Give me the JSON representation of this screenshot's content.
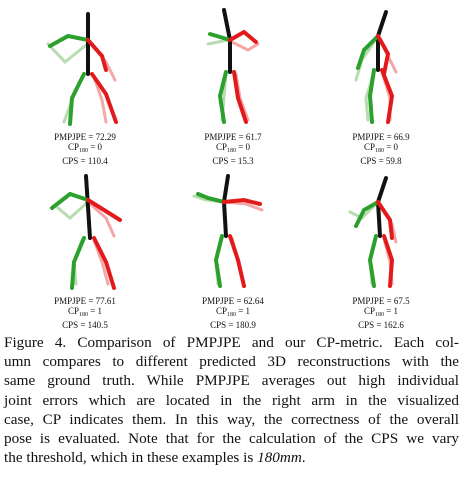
{
  "colors": {
    "ground_truth_left": "#2ca02c",
    "ground_truth_right": "#e31a1c",
    "prediction_left": "#b8dcb0",
    "prediction_right": "#f4a7a7",
    "torso": "#111111"
  },
  "panels": [
    {
      "pmpjpe": "PMPJPE = 72.29",
      "cp_label": "CP",
      "cp_sub": "180",
      "cp_value": " = 0",
      "cps": "CPS = 110.4"
    },
    {
      "pmpjpe": "PMPJPE = 61.7",
      "cp_label": "CP",
      "cp_sub": "180",
      "cp_value": " = 0",
      "cps": "CPS = 15.3"
    },
    {
      "pmpjpe": "PMPJPE = 66.9",
      "cp_label": "CP",
      "cp_sub": "180",
      "cp_value": " = 0",
      "cps": "CPS = 59.8"
    },
    {
      "pmpjpe": "PMPJPE = 77.61",
      "cp_label": "CP",
      "cp_sub": "180",
      "cp_value": " = 1",
      "cps": "CPS = 140.5"
    },
    {
      "pmpjpe": "PMPJPE = 62.64",
      "cp_label": "CP",
      "cp_sub": "180",
      "cp_value": " = 1",
      "cps": "CPS = 180.9"
    },
    {
      "pmpjpe": "PMPJPE = 67.5",
      "cp_label": "CP",
      "cp_sub": "180",
      "cp_value": " = 1",
      "cps": "CPS = 162.6"
    }
  ],
  "caption": {
    "line1": "Figure 4. Comparison of PMPJPE and our CP-metric.  Each col-",
    "line2": "umn compares to different predicted 3D reconstructions with the",
    "line3": "same ground truth.  While PMPJPE averages out high individual",
    "line4": "joint errors which are located in the right arm in the visualized",
    "line5": "case, CP indicates them.  In this way, the correctness of the overall",
    "line6": "pose is evaluated.  Note that for the calculation of the CPS we vary",
    "line7_text": "the threshold, which in these examples is ",
    "line7_math": "180mm",
    "line7_end": "."
  }
}
